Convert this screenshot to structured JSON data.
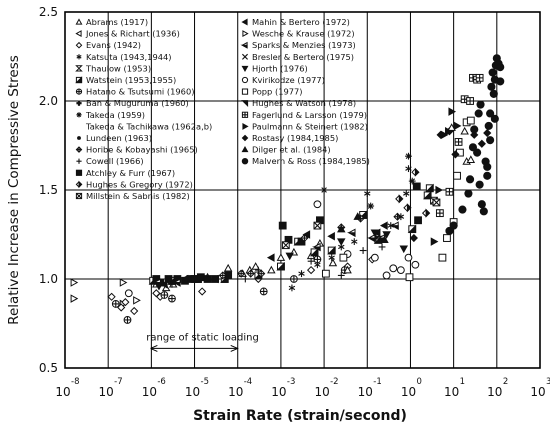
{
  "chart_data": {
    "type": "scatter",
    "title": "",
    "xlabel": "Strain Rate (strain/second)",
    "ylabel": "Relative Increase in Compressive Stress",
    "x_scale": "log",
    "xlim": [
      1e-08,
      1000.0
    ],
    "ylim": [
      0.5,
      2.5
    ],
    "x_ticks": [
      {
        "base": "10",
        "exp": "-8",
        "value": 1e-08
      },
      {
        "base": "10",
        "exp": "-7",
        "value": 1e-07
      },
      {
        "base": "10",
        "exp": "-6",
        "value": 1e-06
      },
      {
        "base": "10",
        "exp": "-5",
        "value": 1e-05
      },
      {
        "base": "10",
        "exp": "-4",
        "value": 0.0001
      },
      {
        "base": "10",
        "exp": "-3",
        "value": 0.001
      },
      {
        "base": "10",
        "exp": "-2",
        "value": 0.01
      },
      {
        "base": "10",
        "exp": "-1",
        "value": 0.1
      },
      {
        "base": "10",
        "exp": "0",
        "value": 1
      },
      {
        "base": "10",
        "exp": "1",
        "value": 10
      },
      {
        "base": "10",
        "exp": "2",
        "value": 100
      },
      {
        "base": "10",
        "exp": "3",
        "value": 1000
      }
    ],
    "y_ticks": [
      "0.5",
      "1.0",
      "1.5",
      "2.0",
      "2.5"
    ],
    "grid": true,
    "annotation": {
      "text": "range of static loading",
      "x_range": [
        1e-06,
        0.0001
      ],
      "y": 0.61
    },
    "legend_left": [
      {
        "label": "Abrams (1917)",
        "marker": "triangle"
      },
      {
        "label": "Jones & Richart (1936)",
        "marker": "tri-left"
      },
      {
        "label": "Evans (1942)",
        "marker": "diamond-open"
      },
      {
        "label": "Katsuta (1943,1944)",
        "marker": "asterisk"
      },
      {
        "label": "Thaulow (1953)",
        "marker": "hourglass"
      },
      {
        "label": "Watstein (1953,1955)",
        "marker": "square-half"
      },
      {
        "label": "Hatano & Tsutsumi (1960)",
        "marker": "circle-plus"
      },
      {
        "label": "Ban & Muguruma (1960)",
        "marker": "plus-bold"
      },
      {
        "label": "Takeda (1959)",
        "marker": "star"
      },
      {
        "label": "Takeda & Tachikawa (1962a,b)",
        "marker": "none"
      },
      {
        "label": "Lundeen (1963)",
        "marker": "dot-small"
      },
      {
        "label": "Horibe & Kobayashi (1965)",
        "marker": "diamond-cross"
      },
      {
        "label": "Cowell (1966)",
        "marker": "plus"
      },
      {
        "label": "Atchley & Furr (1967)",
        "marker": "square-filled"
      },
      {
        "label": "Hughes & Gregory (1972)",
        "marker": "diamond-half"
      },
      {
        "label": "Millstein & Sabnis (1982)",
        "marker": "square-x"
      }
    ],
    "legend_right": [
      {
        "label": "Mahin & Bertero (1972)",
        "marker": "tri-left-filled"
      },
      {
        "label": "Wesche & Krause (1972)",
        "marker": "tri-right-open"
      },
      {
        "label": "Sparks & Menzies (1973)",
        "marker": "tri-left-half"
      },
      {
        "label": "Bresler & Bertero (1975)",
        "marker": "x"
      },
      {
        "label": "Hjorth (1976)",
        "marker": "tri-down"
      },
      {
        "label": "Kvirikodze (1977)",
        "marker": "circle-open"
      },
      {
        "label": "Popp (1977)",
        "marker": "square-open"
      },
      {
        "label": "Hughes & Watson (1978)",
        "marker": "tri-down-right"
      },
      {
        "label": "Fagerlund & Larsson (1979)",
        "marker": "square-plus"
      },
      {
        "label": "Paulmann & Steinert (1982)",
        "marker": "tri-right"
      },
      {
        "label": "Rostasy (1984,1985)",
        "marker": "diamond-filled"
      },
      {
        "label": "Dilger et al. (1984)",
        "marker": "triangle-filled"
      },
      {
        "label": "Malvern & Ross (1984,1985)",
        "marker": "circle-filled"
      }
    ],
    "series": [
      {
        "marker": "tri-right-open",
        "points": [
          [
            1.6e-08,
            0.98
          ],
          [
            1.6e-08,
            0.89
          ],
          [
            2.2e-07,
            0.98
          ],
          [
            2.2e-07,
            0.86
          ],
          [
            4.5e-07,
            0.88
          ]
        ]
      },
      {
        "marker": "diamond-open",
        "points": [
          [
            1.2e-07,
            0.9
          ],
          [
            2e-07,
            0.84
          ],
          [
            2.5e-07,
            0.87
          ],
          [
            4e-07,
            0.82
          ],
          [
            1.3e-06,
            0.92
          ],
          [
            1.6e-06,
            0.9
          ],
          [
            1.5e-05,
            0.93
          ],
          [
            0.0003,
            1.0
          ],
          [
            0.005,
            1.05
          ],
          [
            0.035,
            1.07
          ],
          [
            0.13,
            1.11
          ]
        ]
      },
      {
        "marker": "circle-plus",
        "points": [
          [
            1.5e-07,
            0.86
          ],
          [
            2.8e-07,
            0.77
          ],
          [
            2e-06,
            0.91
          ],
          [
            3e-06,
            0.89
          ],
          [
            0.0004,
            0.93
          ],
          [
            0.002,
            1.0
          ],
          [
            0.007,
            1.11
          ],
          [
            0.03,
            1.05
          ]
        ]
      },
      {
        "marker": "triangle",
        "points": [
          [
            1.3e-06,
            0.97
          ],
          [
            2.2e-06,
            0.95
          ],
          [
            3.2e-06,
            0.97
          ],
          [
            2e-05,
            1.01
          ],
          [
            6e-05,
            1.06
          ],
          [
            0.00013,
            1.03
          ],
          [
            0.00019,
            1.05
          ],
          [
            0.00026,
            1.07
          ],
          [
            0.0006,
            1.05
          ],
          [
            0.001,
            1.12
          ],
          [
            0.002,
            1.15
          ],
          [
            0.005,
            1.13
          ],
          [
            0.008,
            1.2
          ],
          [
            0.016,
            1.09
          ],
          [
            0.035,
            1.05
          ]
        ]
      },
      {
        "marker": "square-half",
        "points": [
          [
            1.1e-06,
            0.99
          ],
          [
            3e-06,
            0.99
          ],
          [
            1.2e-05,
            1.0
          ],
          [
            5e-05,
            1.0
          ],
          [
            0.0003,
            1.02
          ],
          [
            0.001,
            1.07
          ],
          [
            0.0025,
            1.21
          ],
          [
            0.006,
            1.15
          ],
          [
            0.015,
            1.16
          ],
          [
            0.08,
            1.36
          ],
          [
            0.18,
            1.22
          ],
          [
            1.1,
            1.28
          ],
          [
            2.5,
            1.47
          ],
          [
            2.8,
            1.51
          ]
        ]
      },
      {
        "marker": "square-filled",
        "points": [
          [
            1.3e-06,
            1.0
          ],
          [
            1.6e-06,
            0.98
          ],
          [
            2.5e-06,
            1.0
          ],
          [
            4e-06,
            1.0
          ],
          [
            6e-06,
            0.99
          ],
          [
            8e-06,
            1.0
          ],
          [
            1e-05,
            1.0
          ],
          [
            1.4e-05,
            1.01
          ],
          [
            2e-05,
            1.0
          ],
          [
            3e-05,
            1.0
          ],
          [
            6e-05,
            1.02
          ],
          [
            0.0011,
            1.3
          ],
          [
            0.0015,
            1.22
          ],
          [
            0.003,
            1.21
          ],
          [
            0.008,
            1.33
          ],
          [
            1.4,
            1.52
          ],
          [
            1.5,
            1.33
          ]
        ]
      },
      {
        "marker": "diamond-cross",
        "points": [
          [
            4.5e-05,
            1.02
          ],
          [
            0.00012,
            1.03
          ],
          [
            0.0002,
            1.03
          ],
          [
            0.00035,
            1.03
          ],
          [
            0.0035,
            1.23
          ],
          [
            0.025,
            1.29
          ],
          [
            0.07,
            1.34
          ],
          [
            0.5,
            1.35
          ]
        ]
      },
      {
        "marker": "plus",
        "points": [
          [
            3e-06,
            0.97
          ],
          [
            3e-05,
            1.0
          ],
          [
            0.00015,
            1.0
          ],
          [
            0.0003,
            1.05
          ],
          [
            0.005,
            1.1
          ],
          [
            0.025,
            1.02
          ],
          [
            0.08,
            1.16
          ],
          [
            0.22,
            1.18
          ]
        ]
      },
      {
        "marker": "asterisk",
        "points": [
          [
            0.0018,
            0.95
          ],
          [
            0.003,
            1.03
          ],
          [
            0.007,
            1.08
          ],
          [
            0.015,
            1.12
          ],
          [
            0.025,
            1.18
          ],
          [
            0.05,
            1.21
          ],
          [
            0.1,
            1.48
          ],
          [
            0.16,
            1.23
          ],
          [
            0.35,
            1.3
          ],
          [
            0.6,
            1.35
          ],
          [
            0.8,
            1.48
          ],
          [
            0.9,
            1.62
          ]
        ]
      },
      {
        "marker": "tri-left-half",
        "points": [
          [
            1.4e-06,
            0.98
          ],
          [
            4e-06,
            0.98
          ],
          [
            0.007,
            1.18
          ],
          [
            0.045,
            1.26
          ],
          [
            0.13,
            1.23
          ],
          [
            0.22,
            1.23
          ],
          [
            0.45,
            1.3
          ]
        ]
      },
      {
        "marker": "tri-left-filled",
        "points": [
          [
            2e-06,
            0.97
          ],
          [
            6e-06,
            1.0
          ],
          [
            3e-05,
            1.0
          ],
          [
            0.0006,
            1.12
          ],
          [
            0.004,
            1.25
          ],
          [
            0.015,
            1.24
          ],
          [
            0.17,
            1.26
          ],
          [
            0.25,
            1.3
          ]
        ]
      },
      {
        "marker": "tri-down",
        "points": [
          [
            1.5e-06,
            0.96
          ],
          [
            0.0016,
            1.13
          ],
          [
            0.025,
            1.21
          ],
          [
            0.15,
            1.26
          ],
          [
            0.28,
            1.25
          ],
          [
            0.7,
            1.17
          ]
        ]
      },
      {
        "marker": "circle-open",
        "points": [
          [
            3e-07,
            0.92
          ],
          [
            0.007,
            1.42
          ],
          [
            0.035,
            1.14
          ],
          [
            0.15,
            1.12
          ],
          [
            0.28,
            1.02
          ],
          [
            0.4,
            1.06
          ],
          [
            0.6,
            1.05
          ],
          [
            0.9,
            1.12
          ],
          [
            1.3,
            1.08
          ]
        ]
      },
      {
        "marker": "diamond-half",
        "points": [
          [
            0.55,
            1.45
          ],
          [
            0.85,
            1.4
          ],
          [
            1.3,
            1.6
          ],
          [
            2.3,
            1.37
          ]
        ]
      },
      {
        "marker": "triangle-filled",
        "points": [
          [
            0.025,
            1.28
          ],
          [
            0.06,
            1.35
          ],
          [
            0.25,
            1.22
          ]
        ]
      },
      {
        "marker": "star",
        "points": [
          [
            0.01,
            1.5
          ],
          [
            0.12,
            1.41
          ],
          [
            0.9,
            1.69
          ],
          [
            1.1,
            1.55
          ]
        ]
      },
      {
        "marker": "square-open",
        "points": [
          [
            0.011,
            1.03
          ],
          [
            0.028,
            1.12
          ],
          [
            0.95,
            1.01
          ],
          [
            5.5,
            1.12
          ],
          [
            7,
            1.23
          ],
          [
            10,
            1.32
          ],
          [
            12,
            1.58
          ],
          [
            14,
            1.71
          ],
          [
            20,
            1.88
          ],
          [
            25,
            1.89
          ]
        ]
      },
      {
        "marker": "square-x",
        "points": [
          [
            0.0013,
            1.19
          ],
          [
            0.007,
            1.3
          ],
          [
            3.5,
            1.44
          ],
          [
            4,
            1.43
          ]
        ]
      },
      {
        "marker": "square-plus",
        "points": [
          [
            4.8,
            1.37
          ],
          [
            8,
            1.49
          ],
          [
            13,
            1.77
          ],
          [
            18,
            2.01
          ],
          [
            24,
            2.0
          ],
          [
            28,
            2.13
          ],
          [
            35,
            2.12
          ],
          [
            40,
            2.13
          ]
        ]
      },
      {
        "marker": "tri-right",
        "points": [
          [
            3.5,
            1.21
          ],
          [
            4.5,
            1.5
          ],
          [
            6,
            1.81
          ],
          [
            7.5,
            1.83
          ],
          [
            9,
            1.94
          ],
          [
            12,
            1.86
          ]
        ]
      },
      {
        "marker": "diamond-filled",
        "points": [
          [
            1.2,
            1.23
          ],
          [
            5,
            1.81
          ],
          [
            8,
            1.83
          ],
          [
            11,
            1.7
          ],
          [
            30,
            1.81
          ],
          [
            45,
            1.76
          ],
          [
            60,
            1.82
          ]
        ]
      },
      {
        "marker": "circle-filled",
        "points": [
          [
            8,
            1.27
          ],
          [
            10,
            1.3
          ],
          [
            16,
            1.39
          ],
          [
            22,
            1.48
          ],
          [
            24,
            1.56
          ],
          [
            28,
            1.74
          ],
          [
            30,
            1.84
          ],
          [
            35,
            1.71
          ],
          [
            38,
            1.93
          ],
          [
            40,
            1.53
          ],
          [
            42,
            1.98
          ],
          [
            45,
            1.42
          ],
          [
            50,
            1.38
          ],
          [
            55,
            1.66
          ],
          [
            60,
            1.63
          ],
          [
            65,
            1.86
          ],
          [
            70,
            1.78
          ],
          [
            75,
            2.08
          ],
          [
            80,
            2.16
          ],
          [
            85,
            2.04
          ],
          [
            90,
            1.9
          ],
          [
            95,
            2.2
          ],
          [
            100,
            2.24
          ],
          [
            110,
            2.21
          ],
          [
            120,
            2.19
          ],
          [
            120,
            2.11
          ],
          [
            60,
            1.58
          ],
          [
            90,
            2.12
          ],
          [
            70,
            1.93
          ]
        ]
      },
      {
        "marker": "triangle",
        "points": [
          [
            9,
            1.85
          ],
          [
            18,
            1.83
          ],
          [
            20,
            1.66
          ],
          [
            25,
            1.67
          ]
        ]
      }
    ]
  }
}
